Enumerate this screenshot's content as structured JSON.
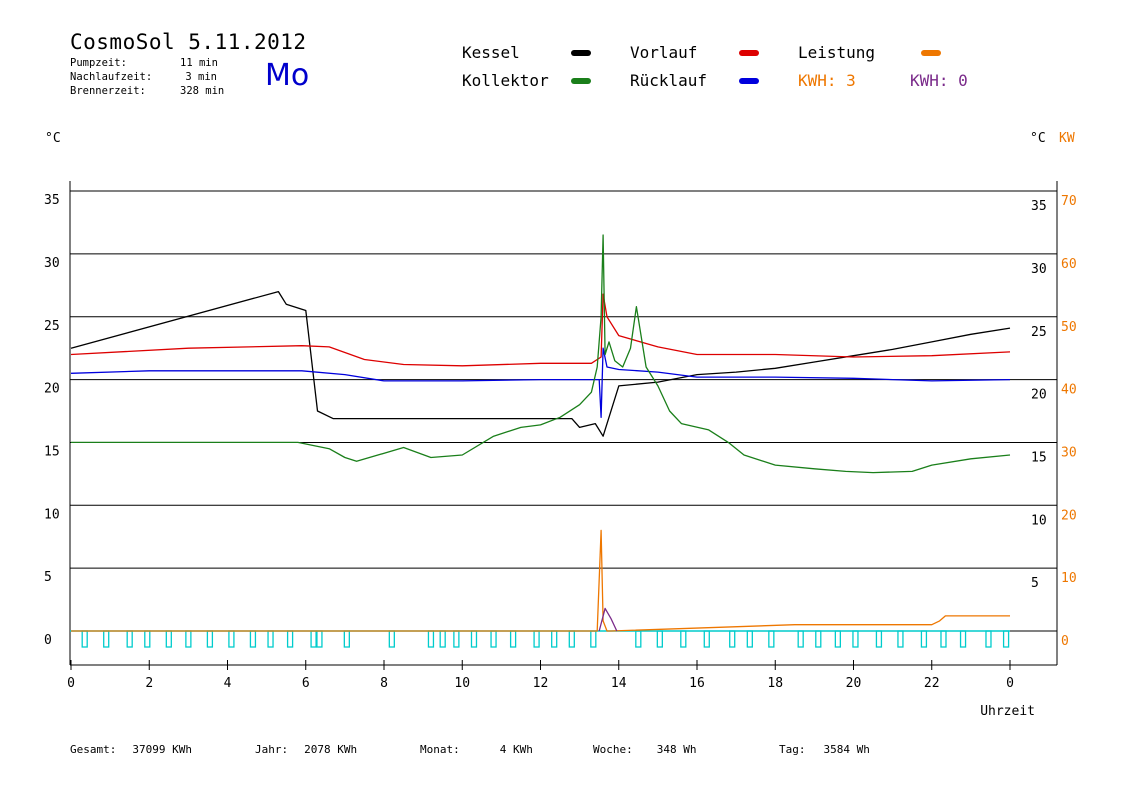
{
  "header": {
    "title": "CosmoSol 5.11.2012",
    "weekday": "Mo",
    "stats": [
      {
        "label": "Pumpzeit:",
        "value": "11 min"
      },
      {
        "label": "Nachlaufzeit:",
        "value": "3 min"
      },
      {
        "label": "Brennerzeit:",
        "value": "328 min"
      }
    ]
  },
  "legend": {
    "kessel": "Kessel",
    "kollektor": "Kollektor",
    "vorlauf": "Vorlauf",
    "ruecklauf": "Rücklauf",
    "leistung": "Leistung",
    "kwh_orange": "KWH: 3",
    "kwh_purple": "KWH: 0"
  },
  "axis_units": {
    "left": "°C",
    "right_c": "°C",
    "right_kw": "KW"
  },
  "footer": [
    {
      "label": "Gesamt:",
      "value": "37099 KWh"
    },
    {
      "label": "Jahr:",
      "value": "2078 KWh"
    },
    {
      "label": "Monat:",
      "value": "4 KWh"
    },
    {
      "label": "Woche:",
      "value": "348 Wh"
    },
    {
      "label": "Tag:",
      "value": "3584 Wh"
    }
  ],
  "colors": {
    "kessel": "#000000",
    "kollektor": "#1a7f1a",
    "vorlauf": "#dd0000",
    "ruecklauf": "#0000dd",
    "leistung": "#ee7700",
    "kwh_purple": "#7a2a8a",
    "pump": "#00cccc"
  },
  "chart_data": {
    "type": "line",
    "xlabel": "Uhrzeit",
    "x_ticks": [
      "0",
      "2",
      "4",
      "6",
      "8",
      "10",
      "12",
      "14",
      "16",
      "18",
      "20",
      "22",
      "0"
    ],
    "xlim": [
      0,
      24
    ],
    "ylim_left": [
      0,
      35
    ],
    "y_ticks_left": [
      0,
      5,
      10,
      15,
      20,
      25,
      30,
      35
    ],
    "y_ticks_right_c": [
      5,
      10,
      15,
      20,
      25,
      30,
      35
    ],
    "y_ticks_right_kw": [
      0,
      10,
      20,
      30,
      40,
      50,
      60,
      70
    ],
    "grid": "horizontal",
    "series": [
      {
        "name": "Kessel",
        "color": "#000000",
        "x": [
          0,
          5.3,
          5.5,
          6.0,
          6.3,
          6.7,
          12.8,
          13.0,
          13.4,
          13.6,
          14.0,
          15.0,
          16.0,
          17.0,
          18.0,
          19.0,
          20.0,
          21.0,
          22.0,
          23.0,
          24.0
        ],
        "y": [
          22.5,
          27.0,
          26.0,
          25.5,
          17.5,
          16.9,
          16.9,
          16.2,
          16.5,
          15.5,
          19.5,
          19.8,
          20.4,
          20.6,
          20.9,
          21.4,
          21.9,
          22.4,
          23.0,
          23.6,
          24.1
        ]
      },
      {
        "name": "Vorlauf",
        "color": "#dd0000",
        "x": [
          0,
          3.0,
          5.9,
          6.6,
          7.5,
          8.5,
          10.0,
          12.0,
          13.3,
          13.55,
          13.6,
          13.7,
          14.0,
          15.0,
          16.0,
          17.0,
          18.0,
          20.0,
          22.0,
          24.0
        ],
        "y": [
          22.0,
          22.5,
          22.7,
          22.6,
          21.6,
          21.2,
          21.1,
          21.3,
          21.3,
          21.8,
          26.8,
          25.0,
          23.5,
          22.6,
          22.0,
          22.0,
          22.0,
          21.8,
          21.9,
          22.2
        ]
      },
      {
        "name": "Rücklauf",
        "color": "#0000dd",
        "x": [
          0,
          2.0,
          5.9,
          7.0,
          8.0,
          10.0,
          12.0,
          13.5,
          13.55,
          13.6,
          13.7,
          14.0,
          15.0,
          16.0,
          18.0,
          20.0,
          22.0,
          24.0
        ],
        "y": [
          20.5,
          20.7,
          20.7,
          20.4,
          19.9,
          19.9,
          20.0,
          20.0,
          17.0,
          22.5,
          21.0,
          20.8,
          20.6,
          20.2,
          20.2,
          20.1,
          19.9,
          20.0
        ]
      },
      {
        "name": "Kollektor",
        "color": "#1a7f1a",
        "x": [
          0,
          3.0,
          5.8,
          6.6,
          7.0,
          7.3,
          8.5,
          9.2,
          10.0,
          10.8,
          11.5,
          12.0,
          12.5,
          13.0,
          13.3,
          13.45,
          13.55,
          13.6,
          13.65,
          13.75,
          13.9,
          14.1,
          14.3,
          14.45,
          14.7,
          15.0,
          15.3,
          15.6,
          16.3,
          16.8,
          17.2,
          18.0,
          19.0,
          19.8,
          20.5,
          21.5,
          22.0,
          23.0,
          24.0
        ],
        "y": [
          15.0,
          15.0,
          15.0,
          14.5,
          13.8,
          13.5,
          14.6,
          13.8,
          14.0,
          15.5,
          16.2,
          16.4,
          17.0,
          18.0,
          19.0,
          21.0,
          25.0,
          31.5,
          22.0,
          23.0,
          21.5,
          21.0,
          22.5,
          25.8,
          21.0,
          19.5,
          17.5,
          16.5,
          16.0,
          15.0,
          14.0,
          13.2,
          12.9,
          12.7,
          12.6,
          12.7,
          13.2,
          13.7,
          14.0
        ]
      },
      {
        "name": "Leistung",
        "color": "#ee7700",
        "x": [
          0,
          13.45,
          13.55,
          13.6,
          13.7,
          13.8,
          18.5,
          20.5,
          22.0,
          22.2,
          22.35,
          24.0
        ],
        "y": [
          0,
          0,
          8.0,
          0.8,
          0,
          0,
          0.5,
          0.5,
          0.5,
          0.8,
          1.2,
          1.2
        ]
      },
      {
        "name": "KWH",
        "color": "#7a2a8a",
        "x": [
          13.5,
          13.65,
          13.8,
          13.95
        ],
        "y": [
          0,
          1.8,
          1.0,
          0
        ]
      }
    ],
    "pump_pulses_hours": [
      0.35,
      0.9,
      1.5,
      1.95,
      2.5,
      3.0,
      3.55,
      4.1,
      4.65,
      5.1,
      5.6,
      6.2,
      6.35,
      7.05,
      8.2,
      9.2,
      9.5,
      9.85,
      10.3,
      10.8,
      11.3,
      11.9,
      12.35,
      12.8,
      13.35,
      14.5,
      15.05,
      15.65,
      16.25,
      16.9,
      17.35,
      17.9,
      18.65,
      19.1,
      19.6,
      20.05,
      20.65,
      21.2,
      21.8,
      22.3,
      22.8,
      23.45,
      23.9
    ]
  }
}
